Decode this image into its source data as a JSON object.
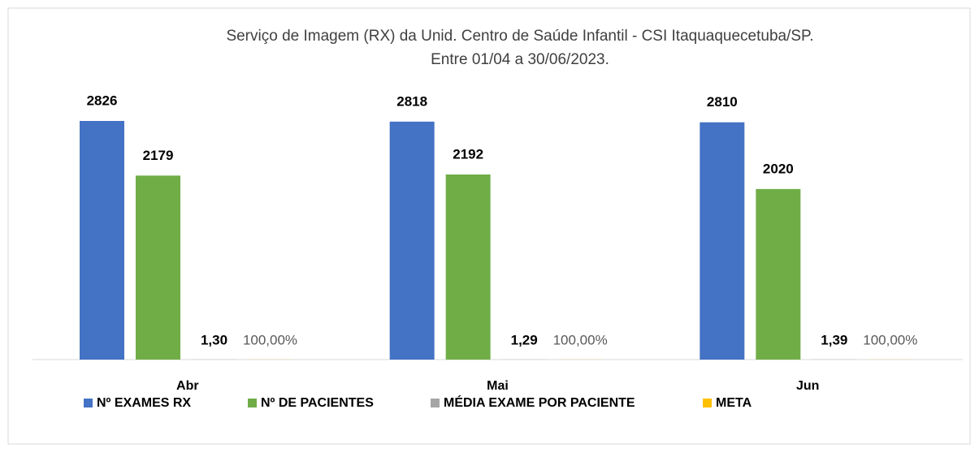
{
  "chart_data": {
    "type": "bar",
    "title": "Serviço de Imagem (RX) da Unid. Centro de Saúde Infantil - CSI Itaquaquecetuba/SP.",
    "subtitle": "Entre 01/04 a 30/06/2023.",
    "categories": [
      "Abr",
      "Mai",
      "Jun"
    ],
    "series": [
      {
        "name": "Nº EXAMES RX",
        "color": "#4472c4",
        "values": [
          2826,
          2818,
          2810
        ]
      },
      {
        "name": "Nº DE PACIENTES",
        "color": "#70ad47",
        "values": [
          2179,
          2192,
          2020
        ]
      },
      {
        "name": "MÉDIA EXAME POR PACIENTE",
        "color": "#a5a5a5",
        "values": [
          1.3,
          1.29,
          1.39
        ],
        "value_labels": [
          "1,30",
          "1,29",
          "1,39"
        ]
      },
      {
        "name": "META",
        "color": "#ffc000",
        "values": [
          1,
          1,
          1
        ],
        "value_labels": [
          "100,00%",
          "100,00%",
          "100,00%"
        ]
      }
    ]
  }
}
